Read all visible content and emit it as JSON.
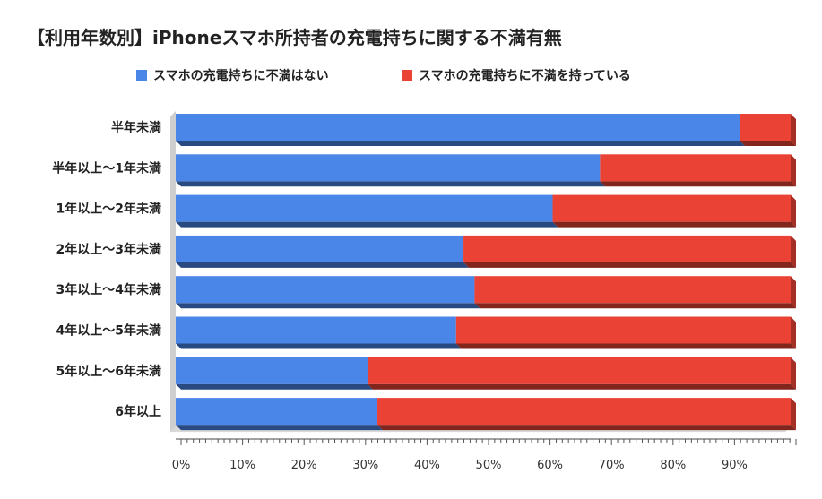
{
  "chart_data": {
    "type": "bar",
    "orientation": "horizontal",
    "stacked": "percent",
    "title": "【利用年数別】iPhoneスマホ所持者の充電持ちに関する不満有無",
    "legend_position": "top",
    "categories": [
      "半年未満",
      "半年以上～1年未満",
      "1年以上～2年未満",
      "2年以上～3年未満",
      "3年以上～4年未満",
      "4年以上～5年未満",
      "5年以上～6年未満",
      "6年以上"
    ],
    "series": [
      {
        "name": "スマホの充電持ちに不満はない",
        "color": "#4a86e8",
        "values": [
          91.7,
          69.0,
          61.3,
          46.8,
          48.6,
          45.6,
          31.2,
          32.8
        ]
      },
      {
        "name": "スマホの充電持ちに不満を持っている",
        "color": "#ea4335",
        "values": [
          8.3,
          31.0,
          38.7,
          53.2,
          51.4,
          54.4,
          68.8,
          67.2
        ]
      }
    ],
    "x_ticks": [
      "0%",
      "10%",
      "20%",
      "30%",
      "40%",
      "50%",
      "60%",
      "70%",
      "80%",
      "90%"
    ],
    "xlim": [
      0,
      100
    ],
    "grid": false
  }
}
